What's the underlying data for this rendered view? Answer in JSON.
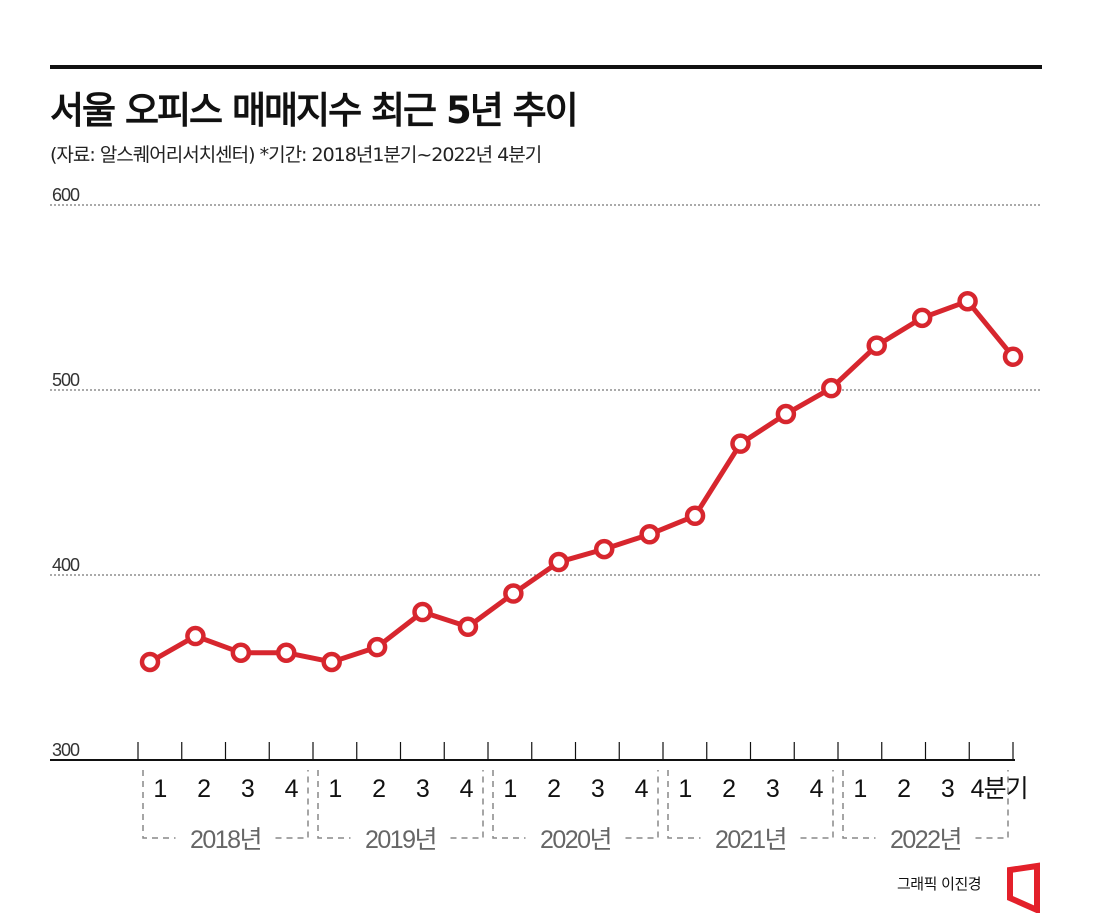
{
  "chart_data": {
    "type": "line",
    "title": "서울 오피스 매매지수 최근 5년 추이",
    "subtitle": "(자료: 알스퀘어리서치센터)  *기간: 2018년1분기~2022년 4분기",
    "xlabel": "",
    "ylabel": "",
    "ylim": [
      300,
      600
    ],
    "yticks": [
      "300",
      "400",
      "500",
      "600"
    ],
    "grid": true,
    "quarter_labels": [
      "1",
      "2",
      "3",
      "4",
      "1",
      "2",
      "3",
      "4",
      "1",
      "2",
      "3",
      "4",
      "1",
      "2",
      "3",
      "4",
      "1",
      "2",
      "3",
      "4분기"
    ],
    "year_labels": [
      "2018년",
      "2019년",
      "2020년",
      "2021년",
      "2022년"
    ],
    "series": [
      {
        "name": "서울 오피스 매매지수",
        "color": "#d7262e",
        "values": [
          353,
          367,
          358,
          358,
          353,
          361,
          380,
          372,
          390,
          407,
          414,
          422,
          432,
          471,
          487,
          501,
          524,
          539,
          548,
          518
        ]
      }
    ]
  },
  "credit": "그래픽 이진경",
  "logo_color": "#e3202a"
}
